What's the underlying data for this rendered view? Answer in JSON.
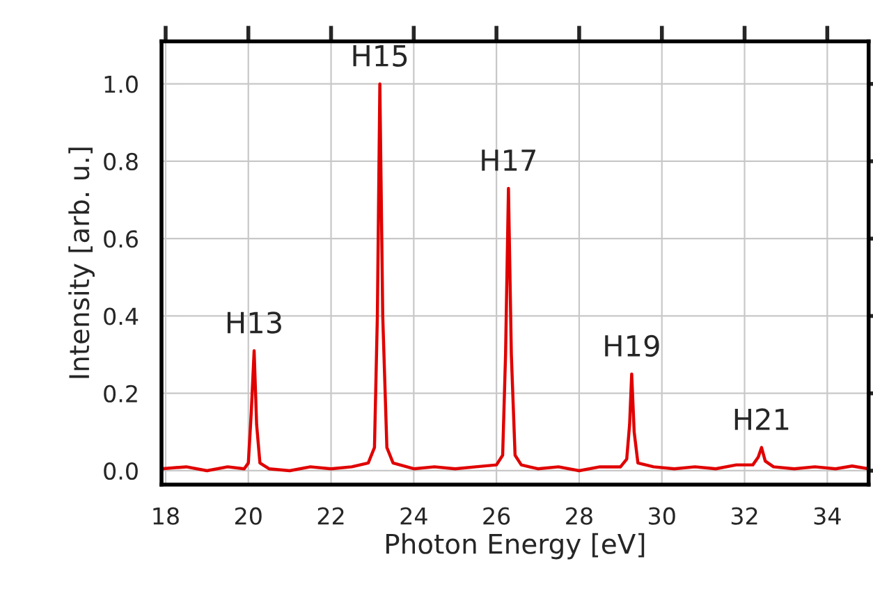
{
  "chart_data": {
    "type": "line",
    "xlabel": "Photon Energy [eV]",
    "ylabel": "Intensity [arb. u.]",
    "series": [
      {
        "color": "#e00000",
        "x": [
          17.9,
          18.5,
          19.0,
          19.5,
          19.9,
          20.0,
          20.07,
          20.14,
          20.2,
          20.28,
          20.5,
          21.0,
          21.5,
          22.0,
          22.5,
          22.9,
          23.05,
          23.12,
          23.18,
          23.25,
          23.35,
          23.5,
          24.0,
          24.5,
          25.0,
          25.5,
          26.0,
          26.15,
          26.22,
          26.29,
          26.36,
          26.45,
          26.6,
          27.0,
          27.5,
          28.0,
          28.5,
          29.0,
          29.15,
          29.22,
          29.27,
          29.33,
          29.42,
          29.8,
          30.3,
          30.8,
          31.3,
          31.8,
          32.2,
          32.33,
          32.41,
          32.5,
          32.7,
          33.2,
          33.7,
          34.2,
          34.6,
          35.0
        ],
        "values": [
          0.005,
          0.01,
          0.0,
          0.01,
          0.005,
          0.02,
          0.15,
          0.31,
          0.12,
          0.02,
          0.005,
          0.0,
          0.01,
          0.005,
          0.01,
          0.02,
          0.06,
          0.4,
          1.0,
          0.4,
          0.06,
          0.02,
          0.005,
          0.01,
          0.005,
          0.01,
          0.015,
          0.04,
          0.3,
          0.73,
          0.3,
          0.04,
          0.015,
          0.005,
          0.01,
          0.0,
          0.01,
          0.01,
          0.03,
          0.12,
          0.25,
          0.1,
          0.02,
          0.01,
          0.005,
          0.01,
          0.005,
          0.015,
          0.015,
          0.035,
          0.06,
          0.025,
          0.01,
          0.005,
          0.01,
          0.005,
          0.012,
          0.005
        ]
      }
    ],
    "annotations": [
      {
        "text": "H13",
        "x": 20.14,
        "y": 0.31
      },
      {
        "text": "H15",
        "x": 23.18,
        "y": 1.0
      },
      {
        "text": "H17",
        "x": 26.29,
        "y": 0.73
      },
      {
        "text": "H19",
        "x": 29.27,
        "y": 0.25
      },
      {
        "text": "H21",
        "x": 32.41,
        "y": 0.06
      }
    ],
    "xlim": [
      17.9,
      35.0
    ],
    "ylim": [
      -0.036,
      1.11
    ],
    "xticks": [
      18,
      20,
      22,
      24,
      26,
      28,
      30,
      32,
      34
    ],
    "yticks": [
      {
        "value": 0,
        "label": "0.0"
      },
      {
        "value": 0.2,
        "label": "0.2"
      },
      {
        "value": 0.4,
        "label": "0.4"
      },
      {
        "value": 0.6,
        "label": "0.6"
      },
      {
        "value": 0.8,
        "label": "0.8"
      },
      {
        "value": 1.0,
        "label": "1.0"
      }
    ],
    "grid": true,
    "marker": "none",
    "line_style": "solid"
  }
}
